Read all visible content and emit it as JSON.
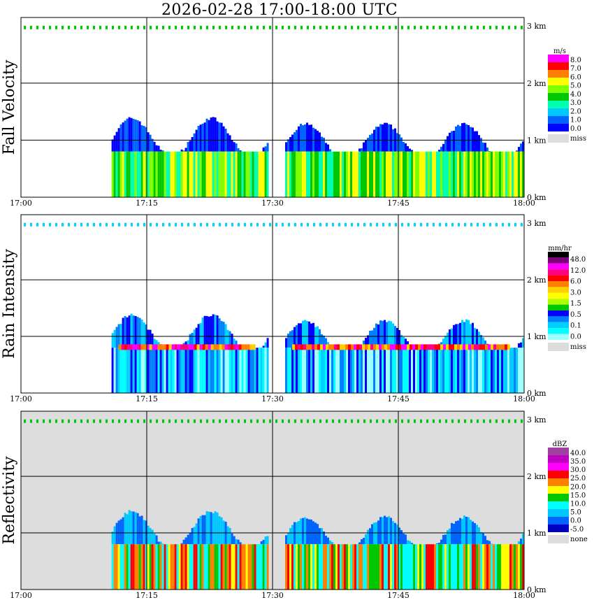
{
  "title": "2026-02-28  17:00-18:00 UTC",
  "chart_data": [
    {
      "type": "heatmap",
      "panel": "Fall Velocity",
      "x_ticks": [
        "17:00",
        "17:15",
        "17:30",
        "17:45",
        "18:00"
      ],
      "y_ticks": [
        "0 km",
        "1 km",
        "2 km",
        "3 km"
      ],
      "xlim": [
        0,
        60
      ],
      "ylim": [
        0,
        3
      ],
      "grid": true,
      "legend": {
        "unit": "m/s",
        "labels": [
          "8.0",
          "7.0",
          "6.0",
          "5.0",
          "4.0",
          "3.0",
          "2.0",
          "1.0",
          "0.0"
        ],
        "colors": [
          "#ff00ff",
          "#ff0000",
          "#ff8000",
          "#ffff00",
          "#80ff00",
          "#00c800",
          "#00ffb0",
          "#00c8ff",
          "#0064ff",
          "#0000ff"
        ],
        "missing_label": "miss",
        "missing_color": "#dddddd"
      },
      "echo_segments": [
        {
          "start_min": 10.8,
          "end_min": 29.5,
          "top_km": 1.35,
          "bright_top_km": 0.8
        },
        {
          "start_min": 31.5,
          "end_min": 60.0,
          "top_km": 1.25,
          "bright_top_km": 0.8
        }
      ]
    },
    {
      "type": "heatmap",
      "panel": "Rain Intensity",
      "x_ticks": [
        "17:00",
        "17:15",
        "17:30",
        "17:45",
        "18:00"
      ],
      "y_ticks": [
        "0 km",
        "1 km",
        "2 km",
        "3 km"
      ],
      "xlim": [
        0,
        60
      ],
      "ylim": [
        0,
        3
      ],
      "grid": true,
      "legend": {
        "unit": "mm/hr",
        "labels": [
          "48.0",
          "12.0",
          "6.0",
          "3.0",
          "1.5",
          "0.5",
          "0.1",
          "0.0"
        ],
        "colors": [
          "#000000",
          "#800080",
          "#ff00ff",
          "#ff0080",
          "#ff0000",
          "#ff8000",
          "#ffd000",
          "#ffff00",
          "#b0ff00",
          "#00c800",
          "#0000ff",
          "#0080ff",
          "#00d0ff",
          "#00ffff",
          "#a0ffff"
        ],
        "missing_label": "miss",
        "missing_color": "#dddddd"
      },
      "echo_segments": [
        {
          "start_min": 10.8,
          "end_min": 29.5,
          "top_km": 1.35,
          "bright_top_km": 0.8
        },
        {
          "start_min": 31.5,
          "end_min": 60.0,
          "top_km": 1.25,
          "bright_top_km": 0.8
        }
      ]
    },
    {
      "type": "heatmap",
      "panel": "Reflectivity",
      "x_ticks": [
        "17:00",
        "17:15",
        "17:30",
        "17:45",
        "18:00"
      ],
      "y_ticks": [
        "0 km",
        "1 km",
        "2 km",
        "3 km"
      ],
      "xlim": [
        0,
        60
      ],
      "ylim": [
        0,
        3
      ],
      "grid": true,
      "legend": {
        "unit": "dBZ",
        "labels": [
          "40.0",
          "35.0",
          "30.0",
          "25.0",
          "20.0",
          "15.0",
          "10.0",
          "5.0",
          "0.0",
          "-5.0"
        ],
        "colors": [
          "#a040a0",
          "#c000c0",
          "#ff00ff",
          "#ff0000",
          "#ff8000",
          "#ffff00",
          "#00c800",
          "#00ffff",
          "#00c8ff",
          "#0064ff",
          "#0000c0"
        ],
        "missing_label": "none",
        "missing_color": "#dddddd"
      },
      "echo_segments": [
        {
          "start_min": 10.8,
          "end_min": 29.5,
          "top_km": 1.35,
          "bright_top_km": 0.8
        },
        {
          "start_min": 31.5,
          "end_min": 60.0,
          "top_km": 1.25,
          "bright_top_km": 0.8
        }
      ]
    }
  ]
}
